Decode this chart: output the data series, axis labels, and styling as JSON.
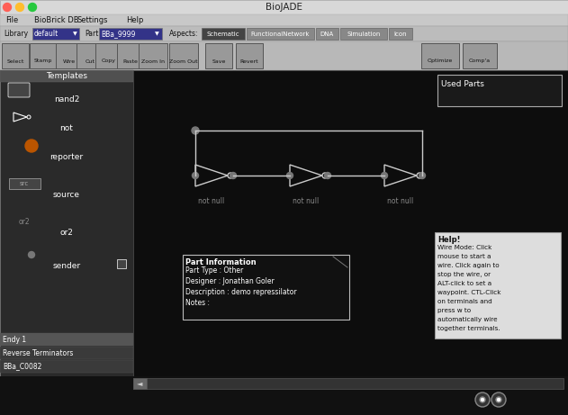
{
  "title": "BioJADE",
  "bg_color": "#1a1a1a",
  "window_bg": "#c8c8c8",
  "titlebar_color": "#d0d0d0",
  "menu_items": [
    "File",
    "BioBrick DB",
    "Settings",
    "Help"
  ],
  "toolbar_buttons": [
    "Select",
    "Stamp",
    "Wire",
    "Cut",
    "Copy",
    "Paste",
    "Zoom In",
    "Zoom Out",
    "Save",
    "Revert",
    "Optimize",
    "Comp'a"
  ],
  "library_label": "Library",
  "library_value": "default",
  "part_label": "Part",
  "part_value": "BBa_9999",
  "aspects_label": "Aspects:",
  "aspect_buttons": [
    "Schematic",
    "FunctionalNetwork",
    "DNA",
    "Simulation",
    "Icon"
  ],
  "templates_label": "Templates",
  "template_items": [
    "nand2",
    "not",
    "reporter",
    "source",
    "or2",
    "sender"
  ],
  "bottom_items": [
    "Endy 1",
    "Reverse Terminators",
    "BBa_C0082"
  ],
  "used_parts_label": "Used Parts",
  "not_gate_labels": [
    "not null",
    "not null",
    "not null"
  ],
  "part_info_title": "Part Information",
  "part_info_lines": [
    "Part Type : Other",
    "Designer : Jonathan Goler",
    "Description : demo repressilator",
    "Notes :"
  ],
  "help_title": "Help!",
  "help_text": "Wire Mode: Click mouse to start a wire. Click again to stop the wire, or ALT-click to set a waypoint. CTL-Click on terminals and press w to automatically wire together terminals.",
  "schematic_bg": "#111111",
  "wire_color": "#cccccc",
  "gate_color": "#dddddd"
}
